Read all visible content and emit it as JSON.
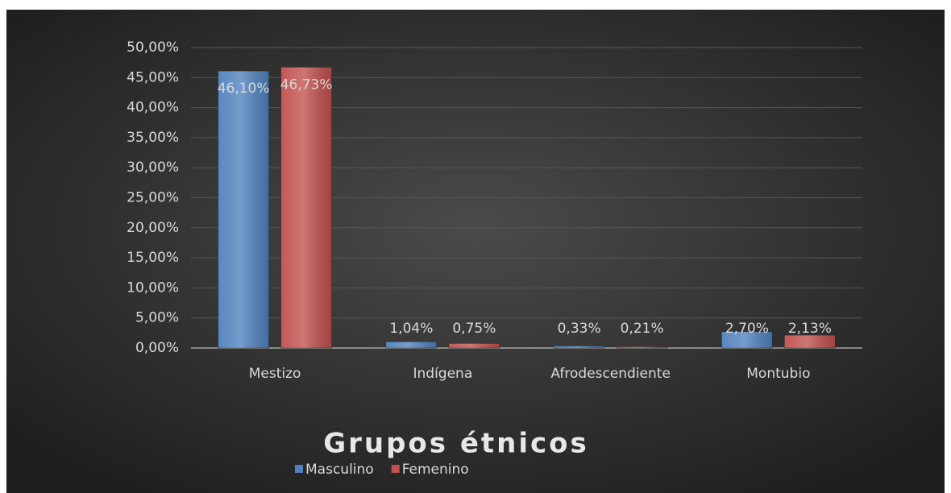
{
  "chart_data": {
    "type": "bar",
    "title": "Grupos étnicos",
    "categories": [
      "Mestizo",
      "Indígena",
      "Afrodescendiente",
      "Montubio"
    ],
    "series": [
      {
        "name": "Masculino",
        "color": "#4f81bd",
        "values": [
          46.1,
          1.04,
          0.33,
          2.7
        ],
        "value_labels": [
          "46,10%",
          "1,04%",
          "0,33%",
          "2,70%"
        ]
      },
      {
        "name": "Femenino",
        "color": "#c0504d",
        "values": [
          46.73,
          0.75,
          0.21,
          2.13
        ],
        "value_labels": [
          "46,73%",
          "0,75%",
          "0,21%",
          "2,13%"
        ]
      }
    ],
    "ylim": [
      0,
      50
    ],
    "yticks": [
      {
        "value": 0,
        "label": "0,00%"
      },
      {
        "value": 5,
        "label": "5,00%"
      },
      {
        "value": 10,
        "label": "10,00%"
      },
      {
        "value": 15,
        "label": "15,00%"
      },
      {
        "value": 20,
        "label": "20,00%"
      },
      {
        "value": 25,
        "label": "25,00%"
      },
      {
        "value": 30,
        "label": "30,00%"
      },
      {
        "value": 35,
        "label": "35,00%"
      },
      {
        "value": 40,
        "label": "40,00%"
      },
      {
        "value": 45,
        "label": "45,00%"
      },
      {
        "value": 50,
        "label": "50,00%"
      }
    ],
    "grid": true,
    "legend": "bottom"
  }
}
